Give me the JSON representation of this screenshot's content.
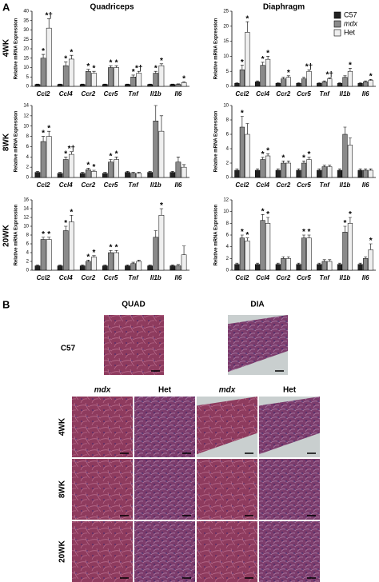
{
  "figure": {
    "panel_a": "A",
    "panel_b": "B",
    "columns": [
      "Quadriceps",
      "Diaphragm"
    ],
    "rows": [
      "4WK",
      "8WK",
      "20WK"
    ],
    "legend": [
      {
        "name": "C57",
        "color": "#222222"
      },
      {
        "name": "mdx",
        "color": "#8a8a8a"
      },
      {
        "name": "Het",
        "color": "#efefef"
      }
    ],
    "histology": {
      "tissues": [
        "QUAD",
        "DIA"
      ],
      "control": "C57",
      "genotypes": [
        "mdx",
        "Het",
        "mdx",
        "Het"
      ],
      "ages": [
        "4WK",
        "8WK",
        "20WK"
      ]
    }
  },
  "chart_data": [
    {
      "type": "bar",
      "ylabel": "Relative mRNA Expression",
      "categories": [
        "Ccl2",
        "Ccl4",
        "Ccr2",
        "Ccr5",
        "Tnf",
        "Il1b",
        "Il6"
      ],
      "ylim": [
        0,
        40
      ],
      "yticks": [
        0,
        5,
        10,
        15,
        20,
        25,
        30,
        35,
        40
      ],
      "series": [
        {
          "values": [
            1,
            1,
            1,
            1,
            1,
            1,
            1
          ],
          "errors": [
            0.2,
            0.2,
            0.2,
            0.2,
            0.2,
            0.2,
            0.2
          ]
        },
        {
          "values": [
            15,
            11,
            8,
            10,
            5,
            7,
            1
          ],
          "errors": [
            2,
            2,
            1,
            1,
            1,
            1,
            0.3
          ],
          "annotations": [
            "*",
            "*",
            "*",
            "*",
            "*",
            "*",
            null
          ]
        },
        {
          "values": [
            31,
            14.5,
            7,
            10,
            7,
            11,
            2
          ],
          "errors": [
            5,
            2,
            1,
            1,
            1,
            1,
            0.5
          ],
          "annotations": [
            "*†",
            "*",
            "*",
            "*",
            "*†",
            "*",
            "*"
          ]
        }
      ]
    },
    {
      "type": "bar",
      "ylabel": "Relative mRNA Expression",
      "categories": [
        "Ccl2",
        "Ccl4",
        "Ccr2",
        "Ccr5",
        "Tnf",
        "Il1b",
        "Il6"
      ],
      "ylim": [
        0,
        14
      ],
      "yticks": [
        0,
        2,
        4,
        6,
        8,
        10,
        12,
        14
      ],
      "series": [
        {
          "values": [
            1,
            0.8,
            0.8,
            0.8,
            1,
            1,
            1
          ],
          "errors": [
            0.2,
            0.2,
            0.2,
            0.2,
            0.2,
            0.2,
            0.2
          ]
        },
        {
          "values": [
            7,
            3.5,
            1.5,
            3,
            0.8,
            11,
            3
          ],
          "errors": [
            1,
            0.5,
            0.3,
            0.5,
            0.2,
            3,
            1
          ],
          "annotations": [
            "*",
            "*",
            "*",
            "*",
            null,
            null,
            null
          ]
        },
        {
          "values": [
            8,
            4.5,
            1.2,
            3.5,
            0.8,
            9,
            2
          ],
          "errors": [
            1,
            0.5,
            0.2,
            0.5,
            0.2,
            3,
            0.5
          ],
          "annotations": [
            "*",
            "*†",
            "*",
            "*",
            null,
            null,
            null
          ]
        }
      ]
    },
    {
      "type": "bar",
      "ylabel": "Relative mRNA Expression",
      "categories": [
        "Ccl2",
        "Ccl4",
        "Ccr2",
        "Ccr5",
        "Tnf",
        "Il1b",
        "Il6"
      ],
      "ylim": [
        0,
        16
      ],
      "yticks": [
        0,
        2,
        4,
        6,
        8,
        10,
        12,
        14,
        16
      ],
      "series": [
        {
          "values": [
            1,
            1,
            1,
            1,
            1,
            1,
            1
          ],
          "errors": [
            0.2,
            0.2,
            0.2,
            0.2,
            0.2,
            0.2,
            0.2
          ]
        },
        {
          "values": [
            7,
            9,
            2,
            4,
            1.5,
            7.5,
            1
          ],
          "errors": [
            0.5,
            1,
            0.3,
            0.5,
            0.3,
            1.5,
            0.3
          ],
          "annotations": [
            "*",
            "*",
            "*",
            "*",
            null,
            null,
            null
          ]
        },
        {
          "values": [
            7,
            11,
            3,
            4,
            2,
            12.5,
            3.5
          ],
          "errors": [
            0.5,
            1.5,
            0.3,
            0.5,
            0.3,
            1.5,
            2
          ],
          "annotations": [
            "*",
            "*",
            "*",
            "*",
            null,
            "*",
            null
          ]
        }
      ]
    },
    {
      "type": "bar",
      "ylabel": "Relative mRNA Expression",
      "categories": [
        "Ccl2",
        "Ccl4",
        "Ccr2",
        "Ccr5",
        "Tnf",
        "Il1b",
        "Il6"
      ],
      "ylim": [
        0,
        25
      ],
      "yticks": [
        0,
        5,
        10,
        15,
        20,
        25
      ],
      "series": [
        {
          "values": [
            1,
            1.5,
            1,
            1,
            1,
            1,
            1
          ],
          "errors": [
            0.2,
            0.3,
            0.2,
            0.2,
            0.2,
            0.2,
            0.2
          ]
        },
        {
          "values": [
            5.5,
            7,
            2.5,
            2.5,
            1.5,
            3,
            1.5
          ],
          "errors": [
            1.5,
            1,
            0.5,
            0.5,
            0.3,
            0.5,
            0.3
          ],
          "annotations": [
            "*",
            "*",
            null,
            null,
            null,
            null,
            null
          ]
        },
        {
          "values": [
            18,
            9,
            3,
            5,
            2.5,
            5,
            2
          ],
          "errors": [
            3.5,
            1,
            0.5,
            0.5,
            0.3,
            1,
            0.3
          ],
          "annotations": [
            "*",
            "*",
            "*",
            "*†",
            "*†",
            "*",
            "*"
          ]
        }
      ]
    },
    {
      "type": "bar",
      "ylabel": "Relative mRNA Expression",
      "categories": [
        "Ccl2",
        "Ccl4",
        "Ccr2",
        "Ccr5",
        "Tnf",
        "Il1b",
        "Il6"
      ],
      "ylim": [
        0,
        10
      ],
      "yticks": [
        0,
        2,
        4,
        6,
        8,
        10
      ],
      "series": [
        {
          "values": [
            1,
            1,
            1,
            1,
            1,
            1,
            1
          ],
          "errors": [
            0.2,
            0.2,
            0.2,
            0.2,
            0.2,
            0.2,
            0.2
          ]
        },
        {
          "values": [
            7,
            2.5,
            2,
            2,
            1.5,
            6,
            1
          ],
          "errors": [
            1.5,
            0.3,
            0.3,
            0.3,
            0.2,
            1,
            0.2
          ],
          "annotations": [
            "*",
            "*",
            "*",
            "*",
            null,
            null,
            null
          ]
        },
        {
          "values": [
            6,
            3,
            2,
            2.5,
            1.5,
            4.5,
            1
          ],
          "errors": [
            1.5,
            0.3,
            0.3,
            0.3,
            0.2,
            1,
            0.2
          ],
          "annotations": [
            null,
            "*",
            null,
            "*",
            null,
            null,
            null
          ]
        }
      ]
    },
    {
      "type": "bar",
      "ylabel": "Relative mRNA Expression",
      "categories": [
        "Ccl2",
        "Ccl4",
        "Ccr2",
        "Ccr5",
        "Tnf",
        "Il1b",
        "Il6"
      ],
      "ylim": [
        0,
        12
      ],
      "yticks": [
        0,
        2,
        4,
        6,
        8,
        10,
        12
      ],
      "series": [
        {
          "values": [
            1,
            1,
            1,
            1,
            1,
            1,
            1
          ],
          "errors": [
            0.2,
            0.2,
            0.2,
            0.2,
            0.2,
            0.2,
            0.2
          ]
        },
        {
          "values": [
            5.5,
            8.5,
            2,
            5.5,
            1.5,
            6.5,
            2
          ],
          "errors": [
            0.5,
            1,
            0.3,
            0.5,
            0.3,
            1,
            0.3
          ],
          "annotations": [
            "*",
            "*",
            null,
            "*",
            null,
            "*",
            null
          ]
        },
        {
          "values": [
            5,
            8,
            2,
            5.5,
            1.5,
            8,
            3.5
          ],
          "errors": [
            0.5,
            1,
            0.3,
            0.5,
            0.3,
            1,
            1
          ],
          "annotations": [
            "*",
            "*",
            null,
            "*",
            null,
            "*",
            "*"
          ]
        }
      ]
    }
  ]
}
